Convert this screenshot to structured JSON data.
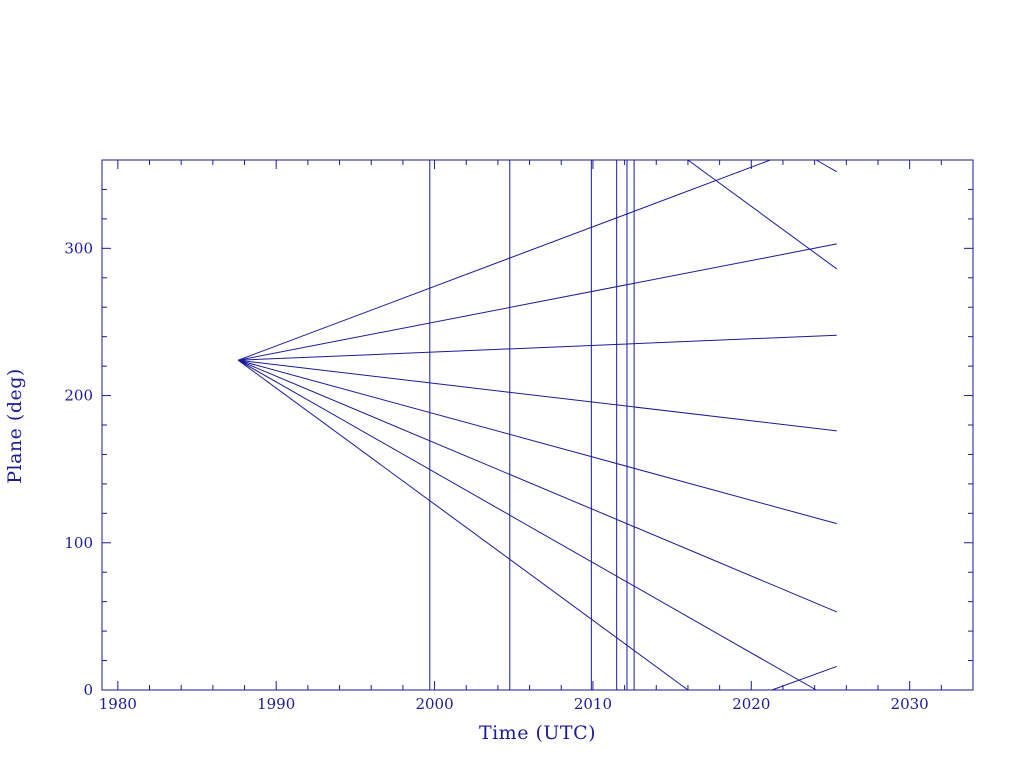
{
  "chart_data": {
    "type": "line",
    "title": "",
    "xlabel": "Time (UTC)",
    "ylabel": "Plane (deg)",
    "xlim": [
      1979,
      2034
    ],
    "ylim": [
      0,
      360
    ],
    "x_ticks": [
      1980,
      1990,
      2000,
      2010,
      2020,
      2030
    ],
    "y_ticks": [
      0,
      100,
      200,
      300
    ],
    "grid": false,
    "legend": "none",
    "color": "#1a1a9a",
    "vertical_markers": [
      1999.7,
      2004.75,
      2009.9,
      2011.5,
      2012.15,
      2012.6
    ],
    "series": [
      {
        "points": [
          [
            1987.6,
            224
          ],
          [
            2021.2,
            360
          ]
        ],
        "wrap_points": []
      },
      {
        "points": [
          [
            1987.6,
            224
          ],
          [
            2025.4,
            303
          ]
        ],
        "wrap_points": []
      },
      {
        "points": [
          [
            1987.6,
            224
          ],
          [
            2025.4,
            241
          ]
        ],
        "wrap_points": []
      },
      {
        "points": [
          [
            1987.6,
            224
          ],
          [
            2025.4,
            176
          ]
        ],
        "wrap_points": []
      },
      {
        "points": [
          [
            1987.6,
            224
          ],
          [
            2025.4,
            113
          ]
        ],
        "wrap_points": []
      },
      {
        "points": [
          [
            1987.6,
            224
          ],
          [
            2025.4,
            53
          ]
        ],
        "wrap_points": []
      },
      {
        "points": [
          [
            1987.6,
            224
          ],
          [
            2024.1,
            0
          ]
        ],
        "wrap_points": [
          [
            2024.1,
            360
          ],
          [
            2025.4,
            352
          ]
        ]
      },
      {
        "points": [
          [
            1987.6,
            224
          ],
          [
            2016.0,
            0
          ]
        ],
        "wrap_points": [
          [
            2016.0,
            360
          ],
          [
            2025.4,
            286
          ]
        ]
      },
      {
        "points": [
          [
            2021.3,
            0
          ],
          [
            2025.4,
            16
          ]
        ],
        "wrap_points": []
      }
    ]
  }
}
